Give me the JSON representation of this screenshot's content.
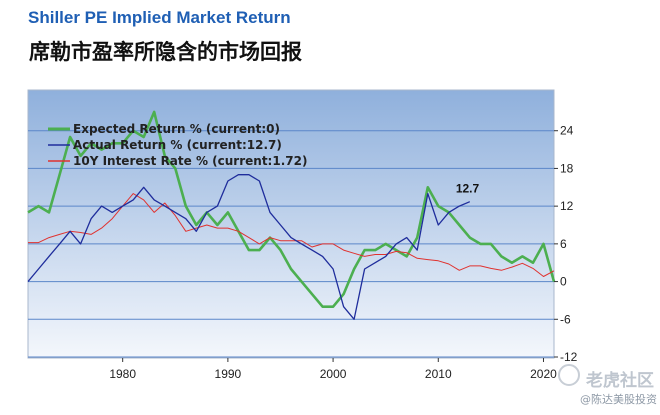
{
  "header": {
    "title": "Shiller PE Implied Market Return",
    "subtitle": "席勒市盈率所隐含的市场回报"
  },
  "watermark": {
    "brand": "老虎社区",
    "user": "@陈达美股投资"
  },
  "colors": {
    "expected": "#4caf50",
    "actual": "#1f2d9c",
    "interest": "#e0322f",
    "grid": "#5b86c9",
    "bg_top": "#8fb0dc",
    "bg_bottom": "#f4f7fc"
  },
  "chart_data": {
    "type": "line",
    "title": "Shiller PE Implied Market Return",
    "xlim": [
      1971,
      2021
    ],
    "ylim": [
      -12,
      30
    ],
    "x_ticks": [
      1980,
      1990,
      2000,
      2010,
      2020
    ],
    "y_ticks": [
      24,
      18,
      12,
      6,
      0,
      -6,
      -12
    ],
    "grid": true,
    "legend_position": "top-left",
    "annotation": {
      "x": 2013,
      "y": 12.7,
      "text": "12.7"
    },
    "series": [
      {
        "name": "Expected Return % (current:0)",
        "color": "#4caf50",
        "x": [
          1971,
          1972,
          1973,
          1974,
          1975,
          1976,
          1977,
          1978,
          1979,
          1980,
          1981,
          1982,
          1983,
          1984,
          1985,
          1986,
          1987,
          1988,
          1989,
          1990,
          1991,
          1992,
          1993,
          1994,
          1995,
          1996,
          1997,
          1998,
          1999,
          2000,
          2001,
          2002,
          2003,
          2004,
          2005,
          2006,
          2007,
          2008,
          2009,
          2010,
          2011,
          2012,
          2013,
          2014,
          2015,
          2016,
          2017,
          2018,
          2019,
          2020,
          2021
        ],
        "y": [
          11,
          12,
          11,
          17,
          23,
          20,
          22,
          21,
          22,
          22,
          24,
          23,
          27,
          20,
          18,
          12,
          9,
          11,
          9,
          11,
          8,
          5,
          5,
          7,
          5,
          2,
          0,
          -2,
          -4,
          -4,
          -2,
          2,
          5,
          5,
          6,
          5,
          4,
          7,
          15,
          12,
          11,
          9,
          7,
          6,
          6,
          4,
          3,
          4,
          3,
          6,
          0
        ]
      },
      {
        "name": "Actual Return % (current:12.7)",
        "color": "#1f2d9c",
        "x": [
          1971,
          1972,
          1973,
          1974,
          1975,
          1976,
          1977,
          1978,
          1979,
          1980,
          1981,
          1982,
          1983,
          1984,
          1985,
          1986,
          1987,
          1988,
          1989,
          1990,
          1991,
          1992,
          1993,
          1994,
          1995,
          1996,
          1997,
          1998,
          1999,
          2000,
          2001,
          2002,
          2003,
          2004,
          2005,
          2006,
          2007,
          2008,
          2009,
          2010,
          2011,
          2012,
          2013
        ],
        "y": [
          0,
          2,
          4,
          6,
          8,
          6,
          10,
          12,
          11,
          12,
          13,
          15,
          13,
          12,
          11,
          10,
          8,
          11,
          12,
          16,
          17,
          17,
          16,
          11,
          9,
          7,
          6,
          5,
          4,
          2,
          -4,
          -6,
          2,
          3,
          4,
          6,
          7,
          5,
          14,
          9,
          11,
          12,
          12.7
        ]
      },
      {
        "name": "10Y Interest Rate % (current:1.72)",
        "color": "#e0322f",
        "x": [
          1971,
          1972,
          1973,
          1974,
          1975,
          1976,
          1977,
          1978,
          1979,
          1980,
          1981,
          1982,
          1983,
          1984,
          1985,
          1986,
          1987,
          1988,
          1989,
          1990,
          1991,
          1992,
          1993,
          1994,
          1995,
          1996,
          1997,
          1998,
          1999,
          2000,
          2001,
          2002,
          2003,
          2004,
          2005,
          2006,
          2007,
          2008,
          2009,
          2010,
          2011,
          2012,
          2013,
          2014,
          2015,
          2016,
          2017,
          2018,
          2019,
          2020,
          2021
        ],
        "y": [
          6.2,
          6.2,
          7,
          7.5,
          8,
          7.8,
          7.5,
          8.5,
          10,
          12,
          14,
          13,
          11,
          12.5,
          10.5,
          8,
          8.5,
          9,
          8.5,
          8.5,
          8,
          7,
          6,
          7,
          6.5,
          6.5,
          6.5,
          5.5,
          6,
          6,
          5,
          4.5,
          4,
          4.3,
          4.3,
          4.8,
          4.6,
          3.7,
          3.5,
          3.3,
          2.8,
          1.8,
          2.5,
          2.5,
          2.1,
          1.8,
          2.3,
          2.9,
          2.1,
          0.8,
          1.72
        ]
      }
    ]
  }
}
